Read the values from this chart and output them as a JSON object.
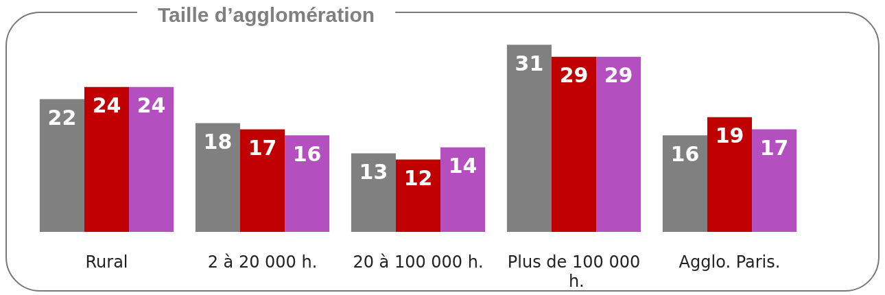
{
  "chart_data": {
    "type": "bar",
    "title": "Taille d’agglomération",
    "categories": [
      "Rural",
      "2 à 20 000 h.",
      "20 à 100 000 h.",
      "Plus de 100 000 h.",
      "Agglo. Paris."
    ],
    "series": [
      {
        "color": "#808080",
        "values": [
          22,
          18,
          13,
          31,
          16
        ]
      },
      {
        "color": "#c00000",
        "values": [
          24,
          17,
          12,
          29,
          19
        ]
      },
      {
        "color": "#b44fc0",
        "values": [
          24,
          16,
          14,
          29,
          17
        ]
      }
    ],
    "data_labels": true
  }
}
